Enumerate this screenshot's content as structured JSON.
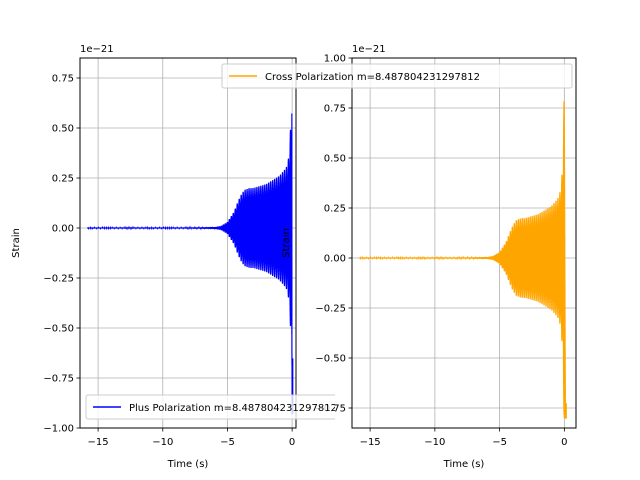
{
  "chart_data": [
    {
      "type": "line",
      "title": "",
      "xlabel": "Time (s)",
      "ylabel": "Strain",
      "offset_text": "1e−21",
      "xlim": [
        -16.4,
        0.3
      ],
      "ylim": [
        -1.0,
        0.85
      ],
      "xticks": [
        -15,
        -10,
        -5,
        0
      ],
      "xtick_labels": [
        "−15",
        "−10",
        "−5",
        "0"
      ],
      "yticks": [
        0.75,
        0.5,
        0.25,
        0.0,
        -0.25,
        -0.5,
        -0.75,
        -1.0
      ],
      "ytick_labels": [
        "0.75",
        "0.50",
        "0.25",
        "0.00",
        "−0.25",
        "−0.50",
        "−0.75",
        "−1.00"
      ],
      "grid": true,
      "legend_position": "lower-left",
      "series": [
        {
          "name": "Plus Polarization m=8.487804231297812",
          "color": "#0000ff",
          "style": "oscillating chirp envelope",
          "x_range": [
            -15.8,
            0.05
          ],
          "envelope": [
            [
              -15.8,
              0.003
            ],
            [
              -8.0,
              0.003
            ],
            [
              -6.0,
              0.005
            ],
            [
              -5.5,
              0.01
            ],
            [
              -5.0,
              0.03
            ],
            [
              -4.5,
              0.08
            ],
            [
              -4.2,
              0.13
            ],
            [
              -4.0,
              0.16
            ],
            [
              -3.7,
              0.19
            ],
            [
              -3.3,
              0.2
            ],
            [
              -3.0,
              0.2
            ],
            [
              -2.5,
              0.21
            ],
            [
              -2.0,
              0.22
            ],
            [
              -1.5,
              0.24
            ],
            [
              -1.0,
              0.26
            ],
            [
              -0.6,
              0.29
            ],
            [
              -0.4,
              0.31
            ],
            [
              -0.25,
              0.36
            ],
            [
              -0.15,
              0.45
            ],
            [
              -0.08,
              0.6
            ],
            [
              -0.03,
              0.75
            ],
            [
              0.0,
              0.85
            ]
          ],
          "min_value": -0.93
        }
      ]
    },
    {
      "type": "line",
      "title": "",
      "xlabel": "Time (s)",
      "ylabel": "Strain",
      "offset_text": "1e−21",
      "xlim": [
        -16.4,
        0.9
      ],
      "ylim": [
        -0.85,
        1.0
      ],
      "xticks": [
        -15,
        -10,
        -5,
        0
      ],
      "xtick_labels": [
        "−15",
        "−10",
        "−5",
        "0"
      ],
      "yticks": [
        1.0,
        0.75,
        0.5,
        0.25,
        0.0,
        -0.25,
        -0.5,
        -0.75
      ],
      "ytick_labels": [
        "1.00",
        "0.75",
        "0.50",
        "0.25",
        "0.00",
        "−0.25",
        "−0.50",
        "−0.75"
      ],
      "grid": true,
      "legend_position": "upper-right",
      "series": [
        {
          "name": "Cross Polarization m=8.487804231297812",
          "color": "#ffa500",
          "style": "oscillating chirp envelope",
          "x_range": [
            -15.8,
            0.15
          ],
          "envelope": [
            [
              -15.8,
              0.003
            ],
            [
              -8.0,
              0.003
            ],
            [
              -6.0,
              0.005
            ],
            [
              -5.5,
              0.01
            ],
            [
              -5.0,
              0.03
            ],
            [
              -4.5,
              0.08
            ],
            [
              -4.2,
              0.13
            ],
            [
              -4.0,
              0.16
            ],
            [
              -3.7,
              0.19
            ],
            [
              -3.3,
              0.2
            ],
            [
              -3.0,
              0.2
            ],
            [
              -2.5,
              0.21
            ],
            [
              -2.0,
              0.22
            ],
            [
              -1.5,
              0.24
            ],
            [
              -1.0,
              0.26
            ],
            [
              -0.6,
              0.29
            ],
            [
              -0.4,
              0.31
            ],
            [
              -0.25,
              0.36
            ],
            [
              -0.15,
              0.45
            ],
            [
              -0.08,
              0.6
            ],
            [
              -0.03,
              0.78
            ],
            [
              0.0,
              0.95
            ]
          ],
          "min_value": -0.8
        }
      ]
    }
  ]
}
